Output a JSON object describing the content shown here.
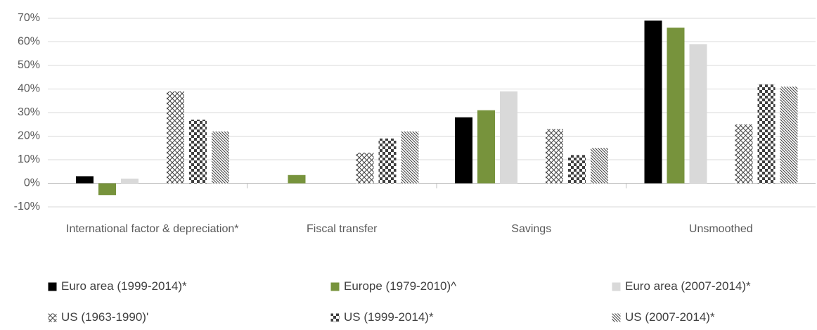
{
  "chart_data": {
    "type": "bar",
    "categories": [
      "International factor & depreciation*",
      "Fiscal transfer",
      "Savings",
      "Unsmoothed"
    ],
    "series": [
      {
        "name": "Euro area (1999-2014)*",
        "color": "#000000",
        "values": [
          3,
          null,
          28,
          69
        ]
      },
      {
        "name": "Europe (1979-2010)^",
        "color": "#77933c",
        "values": [
          -5,
          3.5,
          31,
          66
        ]
      },
      {
        "name": "Euro area (2007-2014)*",
        "color": "#d9d9d9",
        "values": [
          2,
          null,
          39,
          59
        ]
      },
      {
        "name": "US (1963-1990)'",
        "color": "#404040",
        "pattern": "crosshatch",
        "values": [
          39,
          13,
          23,
          25
        ]
      },
      {
        "name": "US (1999-2014)*",
        "color": "#404040",
        "pattern": "checker",
        "values": [
          27,
          19,
          12,
          42
        ]
      },
      {
        "name": "US (2007-2014)*",
        "color": "#404040",
        "pattern": "diagonal",
        "values": [
          22,
          22,
          15,
          41
        ]
      }
    ],
    "ylim": [
      -10,
      70
    ],
    "yticks": [
      {
        "value": -10,
        "label": "-10%"
      },
      {
        "value": 0,
        "label": "0%"
      },
      {
        "value": 10,
        "label": "10%"
      },
      {
        "value": 20,
        "label": "20%"
      },
      {
        "value": 30,
        "label": "30%"
      },
      {
        "value": 40,
        "label": "40%"
      },
      {
        "value": 50,
        "label": "50%"
      },
      {
        "value": 60,
        "label": "60%"
      },
      {
        "value": 70,
        "label": "70%"
      }
    ],
    "grid": true,
    "legend": "bottom"
  }
}
